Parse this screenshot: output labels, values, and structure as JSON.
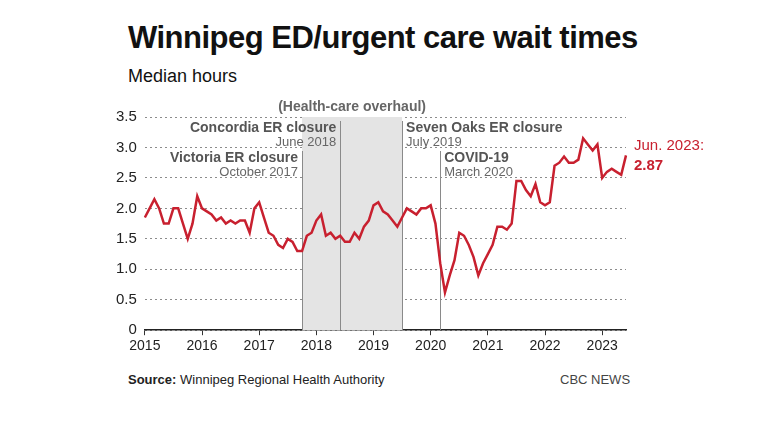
{
  "chart_data": {
    "type": "line",
    "title": "Winnipeg ED/urgent care wait times",
    "subtitle": "Median hours",
    "categories": [
      "2015",
      null,
      null,
      null,
      null,
      null,
      null,
      null,
      null,
      null,
      null,
      null,
      "2016",
      null,
      null,
      null,
      null,
      null,
      null,
      null,
      null,
      null,
      null,
      null,
      "2017",
      null,
      null,
      null,
      null,
      null,
      null,
      null,
      null,
      null,
      null,
      null,
      "2018",
      null,
      null,
      null,
      null,
      null,
      null,
      null,
      null,
      null,
      null,
      null,
      "2019",
      null,
      null,
      null,
      null,
      null,
      null,
      null,
      null,
      null,
      null,
      null,
      "2020",
      null,
      null,
      null,
      null,
      null,
      null,
      null,
      null,
      null,
      null,
      null,
      "2021",
      null,
      null,
      null,
      null,
      null,
      null,
      null,
      null,
      null,
      null,
      null,
      "2022",
      null,
      null,
      null,
      null,
      null,
      null,
      null,
      null,
      null,
      null,
      null,
      "2023",
      null,
      null,
      null,
      null,
      null
    ],
    "values": [
      1.85,
      2.0,
      2.15,
      2.0,
      1.75,
      1.75,
      2.0,
      2.0,
      1.75,
      1.5,
      1.75,
      2.2,
      2.0,
      1.95,
      1.9,
      1.8,
      1.85,
      1.75,
      1.8,
      1.75,
      1.8,
      1.8,
      1.6,
      2.0,
      2.1,
      1.85,
      1.6,
      1.55,
      1.4,
      1.35,
      1.5,
      1.45,
      1.3,
      1.3,
      1.55,
      1.6,
      1.8,
      1.9,
      1.55,
      1.6,
      1.5,
      1.55,
      1.45,
      1.45,
      1.6,
      1.5,
      1.7,
      1.8,
      2.05,
      2.1,
      1.95,
      1.9,
      1.8,
      1.7,
      1.85,
      2.0,
      1.95,
      1.9,
      2.0,
      2.0,
      2.05,
      1.75,
      1.1,
      0.62,
      0.9,
      1.15,
      1.6,
      1.55,
      1.4,
      1.2,
      0.9,
      1.1,
      1.25,
      1.4,
      1.7,
      1.7,
      1.65,
      1.75,
      2.45,
      2.45,
      2.3,
      2.2,
      2.4,
      2.1,
      2.05,
      2.1,
      2.7,
      2.75,
      2.85,
      2.75,
      2.75,
      2.8,
      3.15,
      3.05,
      2.95,
      3.05,
      2.5,
      2.6,
      2.65,
      2.6,
      2.55,
      2.87
    ],
    "color": "#c8202f",
    "ylim": [
      0,
      3.5
    ],
    "yticks": [
      0,
      0.5,
      {
        "value": 1,
        "label": "1.0"
      },
      1.5,
      {
        "value": 2,
        "label": "2.0"
      },
      2.5,
      {
        "value": 3,
        "label": "3.0"
      },
      3.5
    ],
    "grid": true,
    "periods": [
      {
        "label": "(Health-care overhaul)",
        "events": [
          {
            "label": "Victoria ER closure",
            "date": "October 2017"
          },
          {
            "label": "Concordia ER closure",
            "date": "June 2018"
          },
          {
            "label": "Seven Oaks ER closure",
            "date": "July 2019"
          }
        ]
      }
    ],
    "events": [
      {
        "label": "COVID-19",
        "date": "March 2020"
      }
    ],
    "end_label": "Jun. 2023:",
    "source": "Source: Winnipeg Regional Health Authority",
    "credit": "CBC NEWS"
  }
}
